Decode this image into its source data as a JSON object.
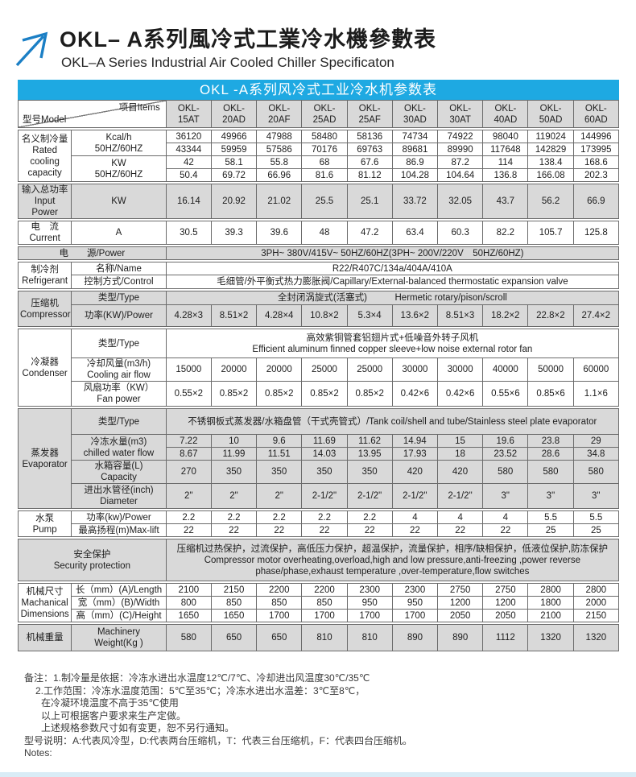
{
  "colors": {
    "accent_blue": "#1ea9e2",
    "arrow_blue": "#1b7fc5",
    "shaded_cell": "#d9d9d9",
    "bottom_strip": "#d9ecf6"
  },
  "header": {
    "title_cn": "OKL– A系列風冷式工業冷水機參數表",
    "title_en": "OKL–A Series Industrial Air Cooled Chiller Specificaton",
    "arrow_icon": "up-right-arrow-icon"
  },
  "table": {
    "caption": "OKL -A系列风冷式工业冷水机参数表",
    "corner": {
      "model": "型号Model",
      "items": "项目Items"
    },
    "models": [
      "OKL-15AT",
      "OKL-20AD",
      "OKL-20AF",
      "OKL-25AD",
      "OKL-25AF",
      "OKL-30AD",
      "OKL-30AT",
      "OKL-40AD",
      "OKL-50AD",
      "OKL-60AD"
    ],
    "sections": [
      {
        "id": "rated",
        "shaded": false,
        "label": [
          "名义制冷量",
          "Rated",
          "cooling",
          "capacity"
        ],
        "rows": [
          {
            "item": [
              "Kcal/h",
              "50HZ/60HZ"
            ],
            "pair": [
              [
                "36120",
                "49966",
                "47988",
                "58480",
                "58136",
                "74734",
                "74922",
                "98040",
                "119024",
                "144996"
              ],
              [
                "43344",
                "59959",
                "57586",
                "70176",
                "69763",
                "89681",
                "89990",
                "117648",
                "142829",
                "173995"
              ]
            ]
          },
          {
            "item": [
              "KW",
              "50HZ/60HZ"
            ],
            "pair": [
              [
                "42",
                "58.1",
                "55.8",
                "68",
                "67.6",
                "86.9",
                "87.2",
                "114",
                "138.4",
                "168.6"
              ],
              [
                "50.4",
                "69.72",
                "66.96",
                "81.6",
                "81.12",
                "104.28",
                "104.64",
                "136.8",
                "166.08",
                "202.3"
              ]
            ]
          }
        ]
      },
      {
        "id": "input-power",
        "shaded": true,
        "label": [
          "输入总功率",
          "Input Power"
        ],
        "rows": [
          {
            "item": [
              "KW"
            ],
            "values": [
              "16.14",
              "20.92",
              "21.02",
              "25.5",
              "25.1",
              "33.72",
              "32.05",
              "43.7",
              "56.2",
              "66.9"
            ]
          }
        ]
      },
      {
        "id": "current",
        "shaded": false,
        "label": [
          "电　流",
          "Current"
        ],
        "rows": [
          {
            "item": [
              "A"
            ],
            "values": [
              "30.5",
              "39.3",
              "39.6",
              "48",
              "47.2",
              "63.4",
              "60.3",
              "82.2",
              "105.7",
              "125.8"
            ]
          }
        ]
      },
      {
        "id": "power-source",
        "shaded": true,
        "wide": true,
        "label": [
          "电　　源/Power"
        ],
        "rows": [
          {
            "span": [
              "3PH~ 380V/415V~ 50HZ/60HZ(3PH~ 200V/220V　50HZ/60HZ)"
            ]
          }
        ]
      },
      {
        "id": "refrigerant",
        "shaded": false,
        "label": [
          "制冷剂",
          "Refrigerant"
        ],
        "rows": [
          {
            "item": [
              "名称/Name"
            ],
            "span": [
              "R22/R407C/134a/404A/410A"
            ]
          },
          {
            "item": [
              "控制方式/Control"
            ],
            "span": [
              "毛细管/外平衡式热力膨胀阀/Capillary/External-balanced thermostatic expansion valve"
            ]
          }
        ]
      },
      {
        "id": "compressor",
        "shaded": true,
        "label": [
          "压缩机",
          "Compressor"
        ],
        "rows": [
          {
            "item": [
              "类型/Type"
            ],
            "span": [
              "全封闭涡旋式(活塞式)　　　Hermetic rotary/pison/scroll"
            ]
          },
          {
            "item": [
              "功率(KW)/Power"
            ],
            "values": [
              "4.28×3",
              "8.51×2",
              "4.28×4",
              "10.8×2",
              "5.3×4",
              "13.6×2",
              "8.51×3",
              "18.2×2",
              "22.8×2",
              "27.4×2"
            ]
          }
        ]
      },
      {
        "id": "condenser",
        "shaded": false,
        "label": [
          "冷凝器",
          "Condenser"
        ],
        "rows": [
          {
            "item": [
              "类型/Type"
            ],
            "span": [
              "高效紫铜管套铝翅片式+低噪音外转子风机",
              "Efficient aluminum finned copper sleeve+low noise external rotor fan"
            ]
          },
          {
            "item": [
              "冷却风量(m3/h)",
              "Cooling air flow"
            ],
            "values": [
              "15000",
              "20000",
              "20000",
              "25000",
              "25000",
              "30000",
              "30000",
              "40000",
              "50000",
              "60000"
            ]
          },
          {
            "item": [
              "风扇功率（KW）",
              "Fan power"
            ],
            "values": [
              "0.55×2",
              "0.85×2",
              "0.85×2",
              "0.85×2",
              "0.85×2",
              "0.42×6",
              "0.42×6",
              "0.55×6",
              "0.85×6",
              "1.1×6"
            ]
          }
        ]
      },
      {
        "id": "evaporator",
        "shaded": true,
        "label": [
          "蒸发器",
          "Evaporator"
        ],
        "rows": [
          {
            "item": [
              "类型/Type"
            ],
            "span": [
              "不锈钢板式蒸发器/水箱盘管（干式壳管式）/Tank coil/shell and tube/Stainless steel plate evaporator"
            ]
          },
          {
            "item": [
              "冷冻水量(m3)",
              "chilled water flow"
            ],
            "pair": [
              [
                "7.22",
                "10",
                "9.6",
                "11.69",
                "11.62",
                "14.94",
                "15",
                "19.6",
                "23.8",
                "29"
              ],
              [
                "8.67",
                "11.99",
                "11.51",
                "14.03",
                "13.95",
                "17.93",
                "18",
                "23.52",
                "28.6",
                "34.8"
              ]
            ]
          },
          {
            "item": [
              "水箱容量(L)",
              "Capacity"
            ],
            "values": [
              "270",
              "350",
              "350",
              "350",
              "350",
              "420",
              "420",
              "580",
              "580",
              "580"
            ]
          },
          {
            "item": [
              "进出水管径(inch)",
              "Diameter"
            ],
            "values": [
              "2\"",
              "2\"",
              "2\"",
              "2-1/2\"",
              "2-1/2\"",
              "2-1/2\"",
              "2-1/2\"",
              "3\"",
              "3\"",
              "3\""
            ]
          }
        ]
      },
      {
        "id": "pump",
        "shaded": false,
        "label": [
          "水泵",
          "Pump"
        ],
        "rows": [
          {
            "item": [
              "功率(kw)/Power"
            ],
            "values": [
              "2.2",
              "2.2",
              "2.2",
              "2.2",
              "2.2",
              "4",
              "4",
              "4",
              "5.5",
              "5.5"
            ]
          },
          {
            "item": [
              "最高扬程(m)Max-lift"
            ],
            "values": [
              "22",
              "22",
              "22",
              "22",
              "22",
              "22",
              "22",
              "22",
              "25",
              "25"
            ]
          }
        ]
      },
      {
        "id": "safety",
        "shaded": true,
        "wide": true,
        "label": [
          "安全保护",
          "Security protection"
        ],
        "rows": [
          {
            "span": [
              "压缩机过热保护，过流保护，高低压力保护，超温保护，流量保护，相序/缺相保护，低液位保护,防冻保护",
              "Compressor motor overheating,overload,high and low pressure,anti-freezing ,power reverse",
              "phase/phase,exhaust temperature ,over-temperature,flow switches"
            ]
          }
        ]
      },
      {
        "id": "dimensions",
        "shaded": false,
        "label": [
          "机械尺寸",
          "Machanical",
          "Dimensions"
        ],
        "rows": [
          {
            "item": [
              "长（mm）(A)/Length"
            ],
            "values": [
              "2100",
              "2150",
              "2200",
              "2200",
              "2300",
              "2300",
              "2750",
              "2750",
              "2800",
              "2800"
            ]
          },
          {
            "item": [
              "宽（mm）(B)/Width"
            ],
            "values": [
              "800",
              "850",
              "850",
              "850",
              "950",
              "950",
              "1200",
              "1200",
              "1800",
              "2000"
            ]
          },
          {
            "item": [
              "高（mm）(C)/Height"
            ],
            "values": [
              "1650",
              "1650",
              "1700",
              "1700",
              "1700",
              "1700",
              "2050",
              "2050",
              "2100",
              "2150"
            ]
          }
        ]
      },
      {
        "id": "weight",
        "shaded": true,
        "label": [
          "机械重量"
        ],
        "rows": [
          {
            "item": [
              "Machinery",
              "Weight(Kg )"
            ],
            "values": [
              "580",
              "650",
              "650",
              "810",
              "810",
              "890",
              "890",
              "1112",
              "1320",
              "1320"
            ]
          }
        ]
      }
    ]
  },
  "notes": {
    "lines": [
      {
        "text": "备注：1.制冷量是依据：冷冻水进出水温度12℃/7℃、冷却进出风温度30℃/35℃",
        "indent": 0
      },
      {
        "text": "2.工作范围：冷冻水温度范围：5℃至35℃；冷冻水进出水温差：3℃至8℃，",
        "indent": 1
      },
      {
        "text": "在冷凝环境温度不高于35℃使用",
        "indent": 2
      },
      {
        "text": "以上可根据客户要求来生产定做。",
        "indent": 2
      },
      {
        "text": "上述规格参数尺寸如有变更，恕不另行通知。",
        "indent": 2
      },
      {
        "text": "型号说明：A:代表风冷型，D:代表两台压缩机，T：代表三台压缩机，F：代表四台压缩机。",
        "indent": 0
      },
      {
        "text": "Notes:",
        "indent": 0
      }
    ]
  }
}
